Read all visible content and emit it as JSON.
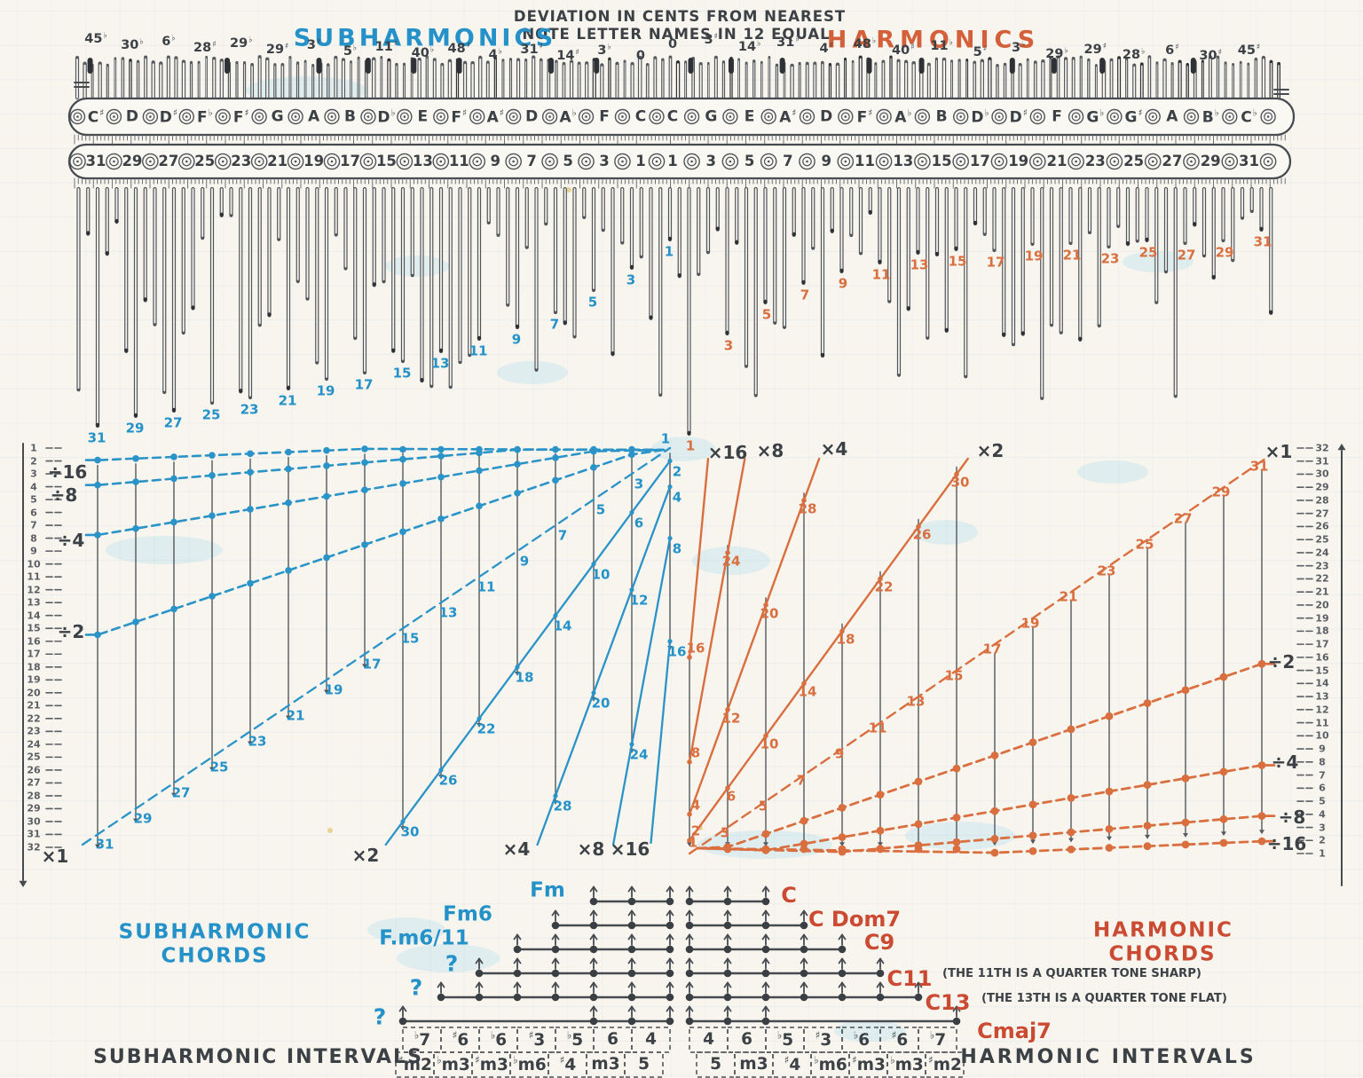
{
  "header": {
    "title_line1": "DEVIATION IN CENTS FROM NEAREST",
    "title_line2": "NOTE LETTER NAMES IN 12 EQUAL",
    "subharmonics_heading": "SUBHARMONICS",
    "harmonics_heading": "HARMONICS"
  },
  "top_panel": {
    "subharmonic": {
      "numbers": [
        31,
        29,
        27,
        25,
        23,
        21,
        19,
        17,
        15,
        13,
        11,
        9,
        7,
        5,
        3,
        1
      ],
      "letters": [
        "C♯",
        "D",
        "D♯",
        "F♭",
        "F♯",
        "G",
        "A",
        "B",
        "D♭",
        "E",
        "F♯",
        "A♯",
        "D",
        "A♭",
        "F",
        "C"
      ],
      "deviations": [
        "45♭",
        "30♭",
        "6♭",
        "28♯",
        "29♭",
        "29♯",
        "3♯",
        "5♭",
        "11♯",
        "40♭",
        "48♯",
        "4♭",
        "31♯",
        "14♯",
        "3♭",
        "0"
      ]
    },
    "harmonic": {
      "numbers": [
        1,
        3,
        5,
        7,
        9,
        11,
        13,
        15,
        17,
        19,
        21,
        23,
        25,
        27,
        29,
        31
      ],
      "letters": [
        "C",
        "G",
        "E",
        "A♯",
        "D",
        "F♯",
        "A♭",
        "B",
        "D♭",
        "D♯",
        "F",
        "G♭",
        "G♯",
        "A",
        "B♭",
        "C♭"
      ],
      "deviations": [
        "0",
        "3♯",
        "14♭",
        "31♭",
        "4♯",
        "48♭",
        "40♯",
        "11♭",
        "5♯",
        "3♭",
        "29♭",
        "29♯",
        "28♭",
        "6♯",
        "30♯",
        "45♯"
      ]
    }
  },
  "fan": {
    "axis": {
      "min": 1,
      "max": 32
    },
    "strings": [
      1,
      3,
      5,
      7,
      9,
      11,
      13,
      15,
      17,
      19,
      21,
      23,
      25,
      27,
      29,
      31
    ],
    "multiply_factors": [
      1,
      2,
      4,
      8,
      16
    ],
    "divide_factors": [
      2,
      4,
      8,
      16
    ],
    "multiply_prefix": "×",
    "divide_prefix": "÷"
  },
  "chords": {
    "subharmonic": {
      "title_line1": "SUBHARMONIC",
      "title_line2": "CHORDS",
      "items": [
        {
          "label": "Fm",
          "tones": [
            1,
            3,
            5
          ]
        },
        {
          "label": "Fm6",
          "tones": [
            1,
            3,
            5,
            7
          ]
        },
        {
          "label": "F.m6/11",
          "tones": [
            1,
            3,
            5,
            7,
            9
          ]
        },
        {
          "label": "?",
          "tones": [
            1,
            3,
            5,
            7,
            9,
            11
          ]
        },
        {
          "label": "?",
          "tones": [
            1,
            3,
            5,
            7,
            9,
            11,
            13
          ]
        },
        {
          "label": "?",
          "tones": [
            1,
            3,
            5,
            15
          ]
        }
      ]
    },
    "harmonic": {
      "title_line1": "HARMONIC",
      "title_line2": "CHORDS",
      "note_11": "(THE 11TH IS A QUARTER TONE SHARP)",
      "note_13": "(THE 13TH IS A QUARTER TONE FLAT)",
      "items": [
        {
          "label": "C",
          "tones": [
            1,
            3,
            5
          ]
        },
        {
          "label": "C Dom7",
          "tones": [
            1,
            3,
            5,
            7
          ]
        },
        {
          "label": "C9",
          "tones": [
            1,
            3,
            5,
            7,
            9
          ]
        },
        {
          "label": "C11",
          "tones": [
            1,
            3,
            5,
            7,
            9,
            11
          ]
        },
        {
          "label": "C13",
          "tones": [
            1,
            3,
            5,
            7,
            9,
            11,
            13
          ]
        },
        {
          "label": "Cmaj7",
          "tones": [
            1,
            3,
            5,
            15
          ]
        }
      ]
    }
  },
  "intervals": {
    "subharmonic_title": "SUBHARMONIC INTERVALS",
    "harmonic_title": "HARMONIC INTERVALS",
    "subharmonic": {
      "top": [
        "♭7",
        "♯6",
        "♭6",
        "♯3",
        "♭5",
        "6",
        "4"
      ],
      "bottom": [
        "♯m2",
        "♭m3",
        "♯m3",
        "♭m6",
        "♯4",
        "m3",
        "5"
      ]
    },
    "harmonic": {
      "top": [
        "4",
        "6",
        "♭5",
        "♯3",
        "♭6",
        "♯6",
        "♭7"
      ],
      "bottom": [
        "5",
        "m3",
        "♯4",
        "♭m6",
        "♯m3",
        "♭m3",
        "♯m2"
      ]
    }
  },
  "colors": {
    "paper": "#f8f5ef",
    "ink": "#3c4146",
    "blue": "#2492c8",
    "orange": "#d96f3f",
    "red": "#cb4a32"
  }
}
